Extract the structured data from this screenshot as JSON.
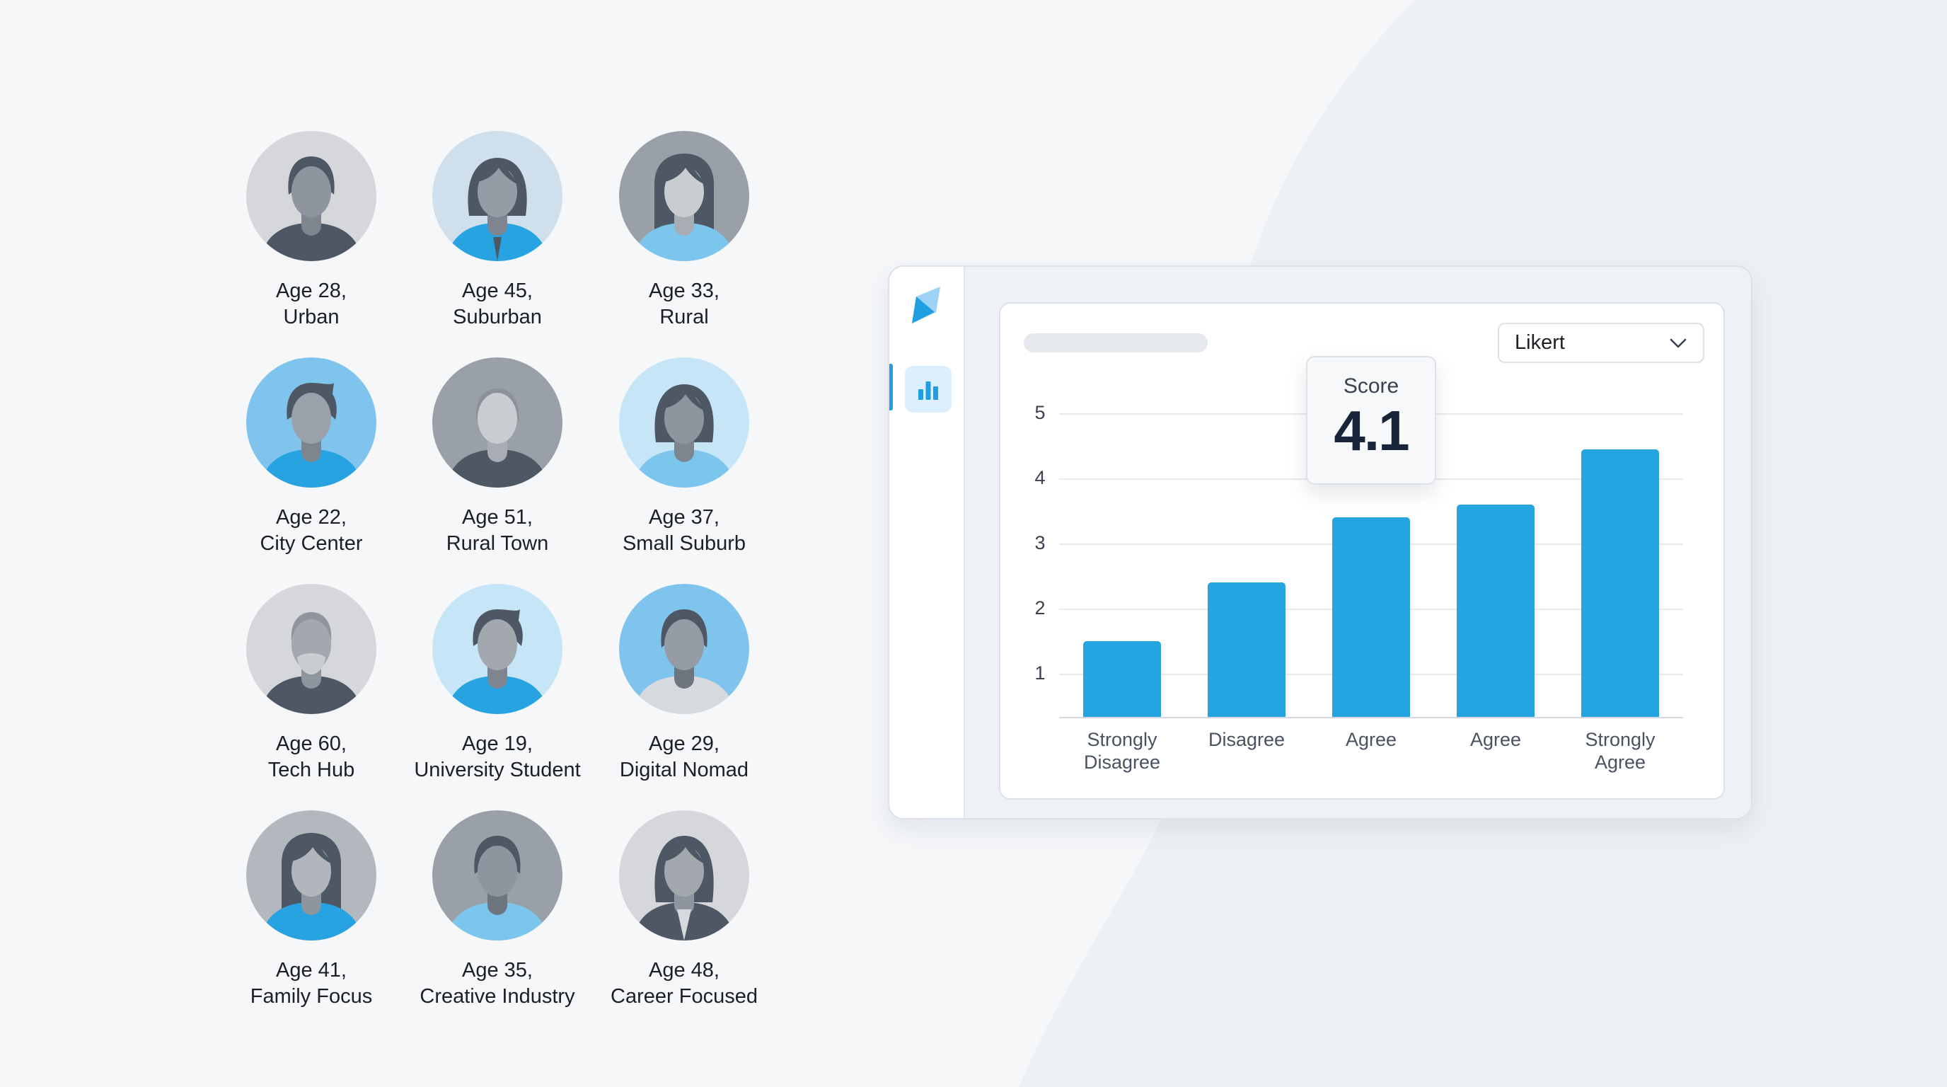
{
  "personas": [
    {
      "age": "Age 28,",
      "location": "Urban"
    },
    {
      "age": "Age 45,",
      "location": "Suburban"
    },
    {
      "age": "Age 33,",
      "location": "Rural"
    },
    {
      "age": "Age 22,",
      "location": "City Center"
    },
    {
      "age": "Age 51,",
      "location": "Rural Town"
    },
    {
      "age": "Age 37,",
      "location": "Small Suburb"
    },
    {
      "age": "Age 60,",
      "location": "Tech Hub"
    },
    {
      "age": "Age 19,",
      "location": "University Student"
    },
    {
      "age": "Age 29,",
      "location": "Digital Nomad"
    },
    {
      "age": "Age 41,",
      "location": "Family Focus"
    },
    {
      "age": "Age 35,",
      "location": "Creative Industry"
    },
    {
      "age": "Age 48,",
      "location": "Career Focused"
    }
  ],
  "sidebar": {
    "logo_icon": "leaf-logo-icon",
    "items": [
      {
        "icon": "bar-chart-icon",
        "active": true
      }
    ]
  },
  "dropdown": {
    "value": "Likert",
    "icon": "chevron-down-icon"
  },
  "score": {
    "label": "Score",
    "value": "4.1"
  },
  "colors": {
    "accent": "#25a4e2",
    "text_dark": "#18243a",
    "background": "#f5f7f9"
  },
  "chart_data": {
    "type": "bar",
    "title": "",
    "categories": [
      "Strongly Disagree",
      "Disagree",
      "Agree",
      "Agree",
      "Strongly Agree"
    ],
    "category_lines": [
      [
        "Strongly",
        "Disagree"
      ],
      [
        "Disagree"
      ],
      [
        "Agree"
      ],
      [
        "Agree"
      ],
      [
        "Strongly",
        "Agree"
      ]
    ],
    "values": [
      1.5,
      2.4,
      3.4,
      3.6,
      4.45
    ],
    "xlabel": "",
    "ylabel": "",
    "yticks": [
      1,
      2,
      3,
      4,
      5
    ],
    "ylim": [
      0.65,
      5
    ],
    "grid": true,
    "legend": "none",
    "annotation": {
      "label": "Score",
      "value": 4.1
    }
  }
}
